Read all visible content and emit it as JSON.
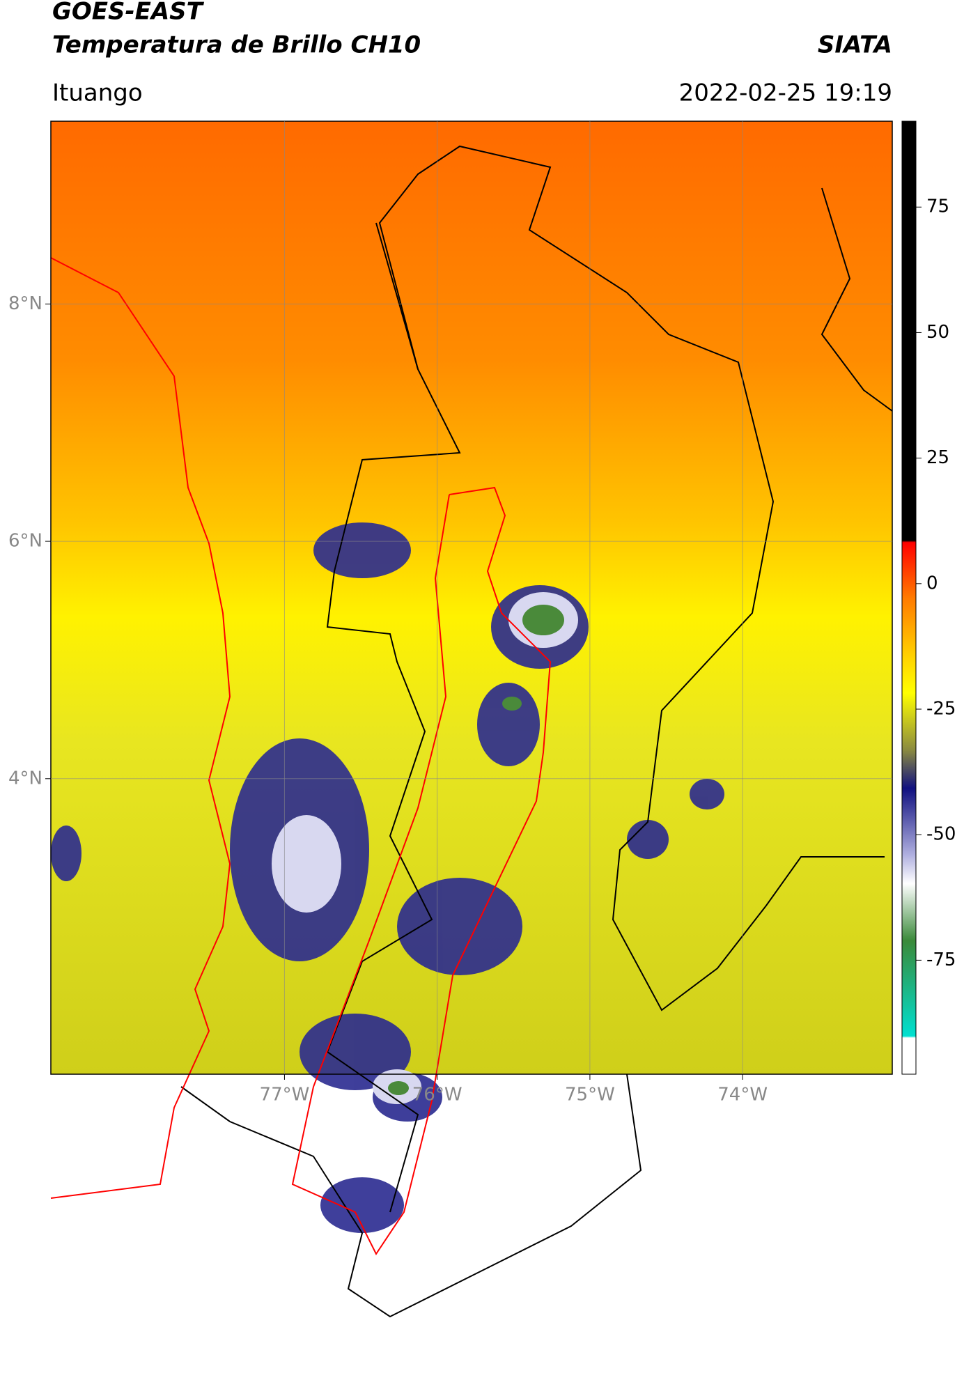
{
  "header": {
    "satellite": "GOES-EAST",
    "product": "Temperatura de Brillo CH10",
    "source": "SIATA",
    "location": "Ituango",
    "datetime": "2022-02-25 19:19"
  },
  "map": {
    "lat_lim": [
      1.51,
      9.54
    ],
    "lon_lim": [
      -78.53,
      -73.02
    ],
    "lat_ticks": [
      {
        "value": 8,
        "label": "8°N"
      },
      {
        "value": 6,
        "label": "6°N"
      },
      {
        "value": 4,
        "label": "4°N"
      }
    ],
    "lon_ticks": [
      {
        "value": -77,
        "label": "77°W"
      },
      {
        "value": -76,
        "label": "76°W"
      },
      {
        "value": -75,
        "label": "75°W"
      },
      {
        "value": -74,
        "label": "74°W"
      }
    ]
  },
  "colorbar": {
    "lim": [
      -97.7,
      92.1
    ],
    "ticks": [
      75,
      50,
      25,
      0,
      -25,
      -50,
      -75
    ]
  }
}
